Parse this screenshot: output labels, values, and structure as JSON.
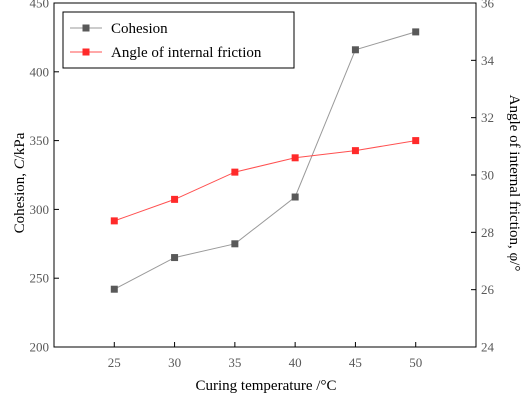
{
  "chart_data": {
    "type": "line",
    "x": [
      25,
      30,
      35,
      40,
      45,
      50
    ],
    "xlabel": "Curing temperature /°C",
    "ylabel_left_parts": [
      "Cohesion, ",
      "C",
      "/kPa"
    ],
    "ylabel_right": "Angle of internal friction, φ/°",
    "xlim": [
      20,
      55
    ],
    "ylim_left": [
      200,
      450
    ],
    "ylim_right": [
      24,
      36
    ],
    "x_ticks": [
      25,
      30,
      35,
      40,
      45,
      50
    ],
    "y_ticks_left": [
      200,
      250,
      300,
      350,
      400,
      450
    ],
    "y_ticks_right": [
      24,
      26,
      28,
      30,
      32,
      34,
      36
    ],
    "grid": false,
    "legend_position": "top-left",
    "series": [
      {
        "name": "Cohesion",
        "axis": "left",
        "color": "#595959",
        "line_color": "#9a9a9a",
        "marker": "square",
        "values": [
          242,
          265,
          275,
          309,
          416,
          429
        ]
      },
      {
        "name": "Angle of internal friction",
        "axis": "right",
        "color": "#ff2a2a",
        "line_color": "#ff5050",
        "marker": "square",
        "values": [
          28.4,
          29.15,
          30.1,
          30.6,
          30.85,
          31.2
        ]
      }
    ]
  }
}
